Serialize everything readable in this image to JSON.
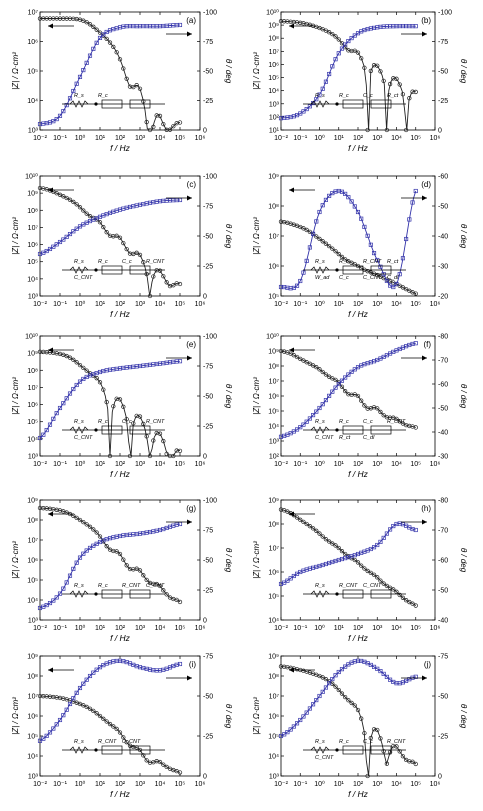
{
  "figure": {
    "colors": {
      "modulus": "#222222",
      "phase": "#3333aa",
      "axis": "#000000"
    },
    "common": {
      "x_label": "f / Hz",
      "y_left_label": "|Z| / Ω·cm²",
      "y_right_label": "θ / deg"
    }
  },
  "chart_data": [
    {
      "type": "line",
      "panel_label": "(a)",
      "x_scale": "log",
      "xlim": [
        0.01,
        1000000
      ],
      "x_ticks": [
        "10⁻²",
        "10⁻¹",
        "10⁰",
        "10¹",
        "10²",
        "10³",
        "10⁴",
        "10⁵",
        "10⁶"
      ],
      "ylim_left": [
        1000,
        10000000
      ],
      "y_left_ticks": [
        "10³",
        "10⁴",
        "10⁵",
        "10⁶",
        "10⁷"
      ],
      "ylim_right": [
        0,
        -100
      ],
      "y_right_ticks": [
        "0",
        "-25",
        "-50",
        "-75",
        "-100"
      ],
      "legend": "arrows",
      "circuit": [
        "R_s",
        "R_c"
      ],
      "series": [
        {
          "role": "modulus",
          "x": [
            0.01,
            0.1,
            1,
            10,
            100,
            1000,
            10000,
            100000
          ],
          "values": [
            6000000,
            6000000,
            5500000,
            2000000,
            250000,
            25000,
            3000,
            1800
          ]
        },
        {
          "role": "phase",
          "x": [
            0.01,
            0.1,
            1,
            10,
            100,
            1000,
            10000,
            100000
          ],
          "values": [
            -5,
            -12,
            -45,
            -78,
            -87,
            -88,
            -88,
            -89
          ]
        }
      ]
    },
    {
      "type": "line",
      "panel_label": "(b)",
      "x_scale": "log",
      "xlim": [
        0.01,
        1000000
      ],
      "x_ticks": [
        "10⁻²",
        "10⁻¹",
        "10⁰",
        "10¹",
        "10²",
        "10³",
        "10⁴",
        "10⁵",
        "10⁶"
      ],
      "ylim_left": [
        10,
        10000000000
      ],
      "y_left_ticks": [
        "10¹",
        "10²",
        "10³",
        "10⁴",
        "10⁵",
        "10⁶",
        "10⁷",
        "10⁸",
        "10⁹",
        "10¹⁰"
      ],
      "ylim_right": [
        0,
        -100
      ],
      "y_right_ticks": [
        "0",
        "-25",
        "-50",
        "-75",
        "-100"
      ],
      "legend": "arrows",
      "circuit": [
        "R_s",
        "R_c",
        "C_c",
        "R_ct"
      ],
      "series": [
        {
          "role": "modulus",
          "x": [
            0.01,
            0.1,
            1,
            10,
            100,
            1000,
            10000,
            100000
          ],
          "values": [
            2000000000,
            1500000000,
            600000000,
            80000000,
            8000000,
            800000,
            80000,
            8000
          ]
        },
        {
          "role": "phase",
          "x": [
            0.01,
            0.1,
            1,
            10,
            100,
            1000,
            10000,
            100000
          ],
          "values": [
            -10,
            -14,
            -30,
            -65,
            -82,
            -87,
            -88,
            -88
          ]
        }
      ]
    },
    {
      "type": "line",
      "panel_label": "(c)",
      "x_scale": "log",
      "xlim": [
        0.01,
        1000000
      ],
      "x_ticks": [
        "10⁻²",
        "10⁻¹",
        "10⁰",
        "10¹",
        "10²",
        "10³",
        "10⁴",
        "10⁵",
        "10⁶"
      ],
      "ylim_left": [
        1000,
        10000000000
      ],
      "y_left_ticks": [
        "10³",
        "10⁴",
        "10⁵",
        "10⁶",
        "10⁷",
        "10⁸",
        "10⁹",
        "10¹⁰"
      ],
      "ylim_right": [
        0,
        -100
      ],
      "y_right_ticks": [
        "0",
        "-25",
        "-50",
        "-75",
        "-100"
      ],
      "legend": "arrows",
      "circuit": [
        "R_s",
        "R_c",
        "C_c",
        "R_CNT",
        "C_CNT"
      ],
      "series": [
        {
          "role": "modulus",
          "x": [
            0.01,
            0.1,
            1,
            10,
            100,
            1000,
            10000,
            100000
          ],
          "values": [
            2000000000,
            800000000,
            150000000,
            20000000,
            2500000,
            250000,
            30000,
            5000
          ]
        },
        {
          "role": "phase",
          "x": [
            0.01,
            0.1,
            1,
            10,
            100,
            1000,
            10000,
            100000
          ],
          "values": [
            -35,
            -45,
            -58,
            -66,
            -72,
            -76,
            -79,
            -80
          ]
        }
      ]
    },
    {
      "type": "line",
      "panel_label": "(d)",
      "x_scale": "log",
      "xlim": [
        0.01,
        1000000
      ],
      "x_ticks": [
        "10⁻²",
        "10⁻¹",
        "10⁰",
        "10¹",
        "10²",
        "10³",
        "10⁴",
        "10⁵",
        "10⁶"
      ],
      "ylim_left": [
        100000,
        1000000000
      ],
      "y_left_ticks": [
        "10⁵",
        "10⁶",
        "10⁷",
        "10⁸",
        "10⁹"
      ],
      "ylim_right": [
        -20,
        -60
      ],
      "y_right_ticks": [
        "-20",
        "-30",
        "-40",
        "-50",
        "-60"
      ],
      "legend": "arrows",
      "circuit": [
        "R_s",
        "R_c",
        "R_CNT",
        "R_ct",
        "W_ad",
        "C_c",
        "C_CNT",
        "C_dl"
      ],
      "series": [
        {
          "role": "modulus",
          "x": [
            0.01,
            0.1,
            1,
            10,
            100,
            1000,
            10000,
            100000
          ],
          "values": [
            30000000,
            20000000,
            8000000,
            2500000,
            1000000,
            500000,
            250000,
            120000
          ]
        },
        {
          "role": "phase",
          "x": [
            0.01,
            0.1,
            1,
            10,
            100,
            1000,
            10000,
            100000
          ],
          "values": [
            -23,
            -25,
            -48,
            -55,
            -48,
            -32,
            -24,
            -55
          ]
        }
      ]
    },
    {
      "type": "line",
      "panel_label": "(e)",
      "x_scale": "log",
      "xlim": [
        0.01,
        1000000
      ],
      "x_ticks": [
        "10⁻²",
        "10⁻¹",
        "10⁰",
        "10¹",
        "10²",
        "10³",
        "10⁴",
        "10⁵",
        "10⁶"
      ],
      "ylim_left": [
        1000,
        10000000000
      ],
      "y_left_ticks": [
        "10³",
        "10⁴",
        "10⁵",
        "10⁶",
        "10⁷",
        "10⁸",
        "10⁹",
        "10¹⁰"
      ],
      "ylim_right": [
        0,
        -100
      ],
      "y_right_ticks": [
        "0",
        "-25",
        "-50",
        "-75",
        "-100"
      ],
      "legend": "arrows",
      "circuit": [
        "R_s",
        "R_c",
        "C_c",
        "R_CNT",
        "C_CNT"
      ],
      "series": [
        {
          "role": "modulus",
          "x": [
            0.01,
            0.1,
            1,
            10,
            100,
            1000,
            10000,
            100000
          ],
          "values": [
            1200000000,
            900000000,
            200000000,
            20000000,
            2000000,
            200000,
            20000,
            2000
          ]
        },
        {
          "role": "phase",
          "x": [
            0.01,
            0.1,
            1,
            10,
            100,
            1000,
            10000,
            100000
          ],
          "values": [
            -15,
            -40,
            -62,
            -70,
            -73,
            -75,
            -77,
            -79
          ]
        }
      ]
    },
    {
      "type": "line",
      "panel_label": "(f)",
      "x_scale": "log",
      "xlim": [
        0.01,
        1000000
      ],
      "x_ticks": [
        "10⁻²",
        "10⁻¹",
        "10⁰",
        "10¹",
        "10²",
        "10³",
        "10⁴",
        "10⁵",
        "10⁶"
      ],
      "ylim_left": [
        100,
        10000000000
      ],
      "y_left_ticks": [
        "10²",
        "10³",
        "10⁴",
        "10⁵",
        "10⁶",
        "10⁷",
        "10⁸",
        "10⁹",
        "10¹⁰"
      ],
      "ylim_right": [
        -30,
        -80
      ],
      "y_right_ticks": [
        "-30",
        "-40",
        "-50",
        "-60",
        "-70",
        "-80"
      ],
      "legend": "arrows",
      "circuit": [
        "R_s",
        "R_c",
        "C_c",
        "R_CNT",
        "C_CNT",
        "R_ct",
        "C_dl"
      ],
      "series": [
        {
          "role": "modulus",
          "x": [
            0.01,
            0.1,
            1,
            10,
            100,
            1000,
            10000,
            100000
          ],
          "values": [
            1000000000,
            300000000,
            60000000,
            8000000,
            1000000,
            150000,
            30000,
            8000
          ]
        },
        {
          "role": "phase",
          "x": [
            0.01,
            0.1,
            1,
            10,
            100,
            1000,
            10000,
            100000
          ],
          "values": [
            -38,
            -42,
            -50,
            -60,
            -67,
            -70,
            -74,
            -77
          ]
        }
      ]
    },
    {
      "type": "line",
      "panel_label": "(g)",
      "x_scale": "log",
      "xlim": [
        0.01,
        1000000
      ],
      "x_ticks": [
        "10⁻²",
        "10⁻¹",
        "10⁰",
        "10¹",
        "10²",
        "10³",
        "10⁴",
        "10⁵",
        "10⁶"
      ],
      "ylim_left": [
        1000,
        1000000000
      ],
      "y_left_ticks": [
        "10³",
        "10⁴",
        "10⁵",
        "10⁶",
        "10⁷",
        "10⁸",
        "10⁹"
      ],
      "ylim_right": [
        0,
        -100
      ],
      "y_right_ticks": [
        "0",
        "-25",
        "-50",
        "-75",
        "-100"
      ],
      "legend": "arrows",
      "circuit": [
        "R_s",
        "R_c",
        "R_CNT",
        "C_CNT"
      ],
      "series": [
        {
          "role": "modulus",
          "x": [
            0.01,
            0.1,
            1,
            10,
            100,
            1000,
            10000,
            100000
          ],
          "values": [
            400000000,
            300000000,
            100000000,
            15000000,
            2000000,
            300000,
            50000,
            8000
          ]
        },
        {
          "role": "phase",
          "x": [
            0.01,
            0.1,
            1,
            10,
            100,
            1000,
            10000,
            100000
          ],
          "values": [
            -10,
            -22,
            -52,
            -65,
            -70,
            -72,
            -75,
            -80
          ]
        }
      ]
    },
    {
      "type": "line",
      "panel_label": "(h)",
      "x_scale": "log",
      "xlim": [
        0.01,
        1000000
      ],
      "x_ticks": [
        "10⁻²",
        "10⁻¹",
        "10⁰",
        "10¹",
        "10²",
        "10³",
        "10⁴",
        "10⁵",
        "10⁶"
      ],
      "ylim_left": [
        10000,
        1000000000
      ],
      "y_left_ticks": [
        "10⁴",
        "10⁵",
        "10⁶",
        "10⁷",
        "10⁸",
        "10⁹"
      ],
      "ylim_right": [
        -40,
        -80
      ],
      "y_right_ticks": [
        "-40",
        "-50",
        "-60",
        "-70",
        "-80"
      ],
      "legend": "arrows",
      "circuit": [
        "R_s",
        "R_CNT",
        "C_CNT"
      ],
      "series": [
        {
          "role": "modulus",
          "x": [
            0.01,
            0.1,
            1,
            10,
            100,
            1000,
            10000,
            100000
          ],
          "values": [
            400000000,
            150000000,
            40000000,
            10000000,
            2500000,
            600000,
            150000,
            40000
          ]
        },
        {
          "role": "phase",
          "x": [
            0.01,
            0.1,
            1,
            10,
            100,
            1000,
            10000,
            100000
          ],
          "values": [
            -52,
            -56,
            -58,
            -60,
            -62,
            -65,
            -72,
            -70
          ]
        }
      ]
    },
    {
      "type": "line",
      "panel_label": "(i)",
      "x_scale": "log",
      "xlim": [
        0.01,
        1000000
      ],
      "x_ticks": [
        "10⁻²",
        "10⁻¹",
        "10⁰",
        "10¹",
        "10²",
        "10³",
        "10⁴",
        "10⁵",
        "10⁶"
      ],
      "ylim_left": [
        1000,
        1000000000
      ],
      "y_left_ticks": [
        "10³",
        "10⁴",
        "10⁵",
        "10⁶",
        "10⁷",
        "10⁸",
        "10⁹"
      ],
      "ylim_right": [
        0,
        -75
      ],
      "y_right_ticks": [
        "0",
        "-25",
        "-50",
        "-75"
      ],
      "legend": "arrows",
      "circuit": [
        "R_s",
        "R_CNT",
        "C_CNT"
      ],
      "series": [
        {
          "role": "modulus",
          "x": [
            0.01,
            0.1,
            1,
            10,
            100,
            1000,
            10000,
            100000
          ],
          "values": [
            10000000,
            8000000,
            4000000,
            1000000,
            150000,
            20000,
            5000,
            1500
          ]
        },
        {
          "role": "phase",
          "x": [
            0.01,
            0.1,
            1,
            10,
            100,
            1000,
            10000,
            100000
          ],
          "values": [
            -22,
            -35,
            -55,
            -68,
            -72,
            -68,
            -66,
            -70
          ]
        }
      ]
    },
    {
      "type": "line",
      "panel_label": "(j)",
      "x_scale": "log",
      "xlim": [
        0.01,
        1000000
      ],
      "x_ticks": [
        "10⁻²",
        "10⁻¹",
        "10⁰",
        "10¹",
        "10²",
        "10³",
        "10⁴",
        "10⁵",
        "10⁶"
      ],
      "ylim_left": [
        1000,
        1000000000
      ],
      "y_left_ticks": [
        "10³",
        "10⁴",
        "10⁵",
        "10⁶",
        "10⁷",
        "10⁸",
        "10⁹"
      ],
      "ylim_right": [
        0,
        -75
      ],
      "y_right_ticks": [
        "0",
        "-25",
        "-50",
        "-75"
      ],
      "legend": "arrows",
      "circuit": [
        "R_s",
        "R_c",
        "C_c",
        "R_CNT",
        "C_CNT"
      ],
      "series": [
        {
          "role": "modulus",
          "x": [
            0.01,
            0.1,
            1,
            10,
            100,
            1000,
            10000,
            100000
          ],
          "values": [
            300000000,
            200000000,
            100000000,
            20000000,
            2000000,
            200000,
            30000,
            4000
          ]
        },
        {
          "role": "phase",
          "x": [
            0.01,
            0.1,
            1,
            10,
            100,
            1000,
            10000,
            100000
          ],
          "values": [
            -25,
            -35,
            -50,
            -65,
            -72,
            -67,
            -58,
            -62
          ]
        }
      ]
    }
  ]
}
